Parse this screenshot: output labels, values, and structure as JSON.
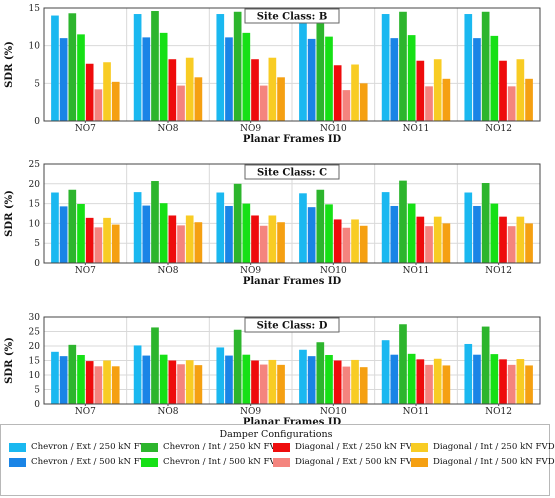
{
  "chart_data": [
    {
      "type": "bar",
      "annotation": "Site Class: B",
      "ylabel": "SDR (%)",
      "xlabel": "Planar Frames ID",
      "ylim": [
        0,
        15
      ],
      "yticks": [
        0,
        5,
        10,
        15
      ],
      "categories": [
        "NO7",
        "NO8",
        "NO9",
        "NO10",
        "NO11",
        "NO12"
      ],
      "series": [
        {
          "name": "Chevron / Ext / 250 kN FVD",
          "values": [
            14.0,
            14.2,
            14.2,
            14.0,
            14.2,
            14.2
          ]
        },
        {
          "name": "Chevron / Ext / 500 kN FVD",
          "values": [
            11.0,
            11.1,
            11.1,
            10.9,
            11.0,
            11.0
          ]
        },
        {
          "name": "Chevron / Int / 250 kN FVD",
          "values": [
            14.3,
            14.6,
            14.5,
            14.3,
            14.5,
            14.5
          ]
        },
        {
          "name": "Chevron / Int / 500 kN FVD",
          "values": [
            11.5,
            11.7,
            11.7,
            11.2,
            11.4,
            11.3
          ]
        },
        {
          "name": "Diagonal / Ext / 250 kN FVD",
          "values": [
            7.6,
            8.2,
            8.2,
            7.4,
            8.0,
            8.0
          ]
        },
        {
          "name": "Diagonal / Ext / 500 kN FVD",
          "values": [
            4.2,
            4.7,
            4.7,
            4.1,
            4.6,
            4.6
          ]
        },
        {
          "name": "Diagonal / Int / 250 kN FVD",
          "values": [
            7.8,
            8.4,
            8.4,
            7.5,
            8.2,
            8.2
          ]
        },
        {
          "name": "Diagonal / Int / 500 kN FVD",
          "values": [
            5.2,
            5.8,
            5.8,
            5.0,
            5.6,
            5.6
          ]
        }
      ]
    },
    {
      "type": "bar",
      "annotation": "Site Class: C",
      "ylabel": "SDR (%)",
      "xlabel": "Planar Frames ID",
      "ylim": [
        0,
        25
      ],
      "yticks": [
        0,
        5,
        10,
        15,
        20,
        25
      ],
      "categories": [
        "NO7",
        "NO8",
        "NO9",
        "NO10",
        "NO11",
        "NO12"
      ],
      "series": [
        {
          "name": "Chevron / Ext / 250 kN FVD",
          "values": [
            17.8,
            17.9,
            17.8,
            17.6,
            17.9,
            17.8
          ]
        },
        {
          "name": "Chevron / Ext / 500 kN FVD",
          "values": [
            14.3,
            14.5,
            14.4,
            14.1,
            14.4,
            14.4
          ]
        },
        {
          "name": "Chevron / Int / 250 kN FVD",
          "values": [
            18.5,
            20.7,
            20.0,
            18.5,
            20.8,
            20.2
          ]
        },
        {
          "name": "Chevron / Int / 500 kN FVD",
          "values": [
            14.9,
            15.1,
            15.0,
            14.8,
            15.0,
            15.0
          ]
        },
        {
          "name": "Diagonal / Ext / 250 kN FVD",
          "values": [
            11.4,
            12.0,
            12.0,
            11.0,
            11.7,
            11.7
          ]
        },
        {
          "name": "Diagonal / Ext / 500 kN FVD",
          "values": [
            9.0,
            9.5,
            9.4,
            8.9,
            9.3,
            9.3
          ]
        },
        {
          "name": "Diagonal / Int / 250 kN FVD",
          "values": [
            11.4,
            12.0,
            12.0,
            11.0,
            11.7,
            11.7
          ]
        },
        {
          "name": "Diagonal / Int / 500 kN FVD",
          "values": [
            9.7,
            10.3,
            10.3,
            9.4,
            10.0,
            10.0
          ]
        }
      ]
    },
    {
      "type": "bar",
      "annotation": "Site Class: D",
      "ylabel": "SDR (%)",
      "xlabel": "Planar Frames ID",
      "ylim": [
        0,
        30
      ],
      "yticks": [
        0,
        5,
        10,
        15,
        20,
        25,
        30
      ],
      "categories": [
        "NO7",
        "NO8",
        "NO9",
        "NO10",
        "NO11",
        "NO12"
      ],
      "series": [
        {
          "name": "Chevron / Ext / 250 kN FVD",
          "values": [
            18.0,
            20.2,
            19.5,
            18.7,
            22.0,
            20.7
          ]
        },
        {
          "name": "Chevron / Ext / 500 kN FVD",
          "values": [
            16.5,
            16.7,
            16.7,
            16.5,
            17.0,
            17.0
          ]
        },
        {
          "name": "Chevron / Int / 250 kN FVD",
          "values": [
            20.4,
            26.4,
            25.6,
            21.3,
            27.5,
            26.7
          ]
        },
        {
          "name": "Chevron / Int / 500 kN FVD",
          "values": [
            16.9,
            17.0,
            17.0,
            16.9,
            17.3,
            17.2
          ]
        },
        {
          "name": "Diagonal / Ext / 250 kN FVD",
          "values": [
            14.8,
            15.0,
            15.0,
            15.0,
            15.4,
            15.4
          ]
        },
        {
          "name": "Diagonal / Ext / 500 kN FVD",
          "values": [
            13.0,
            13.7,
            13.6,
            12.9,
            13.5,
            13.5
          ]
        },
        {
          "name": "Diagonal / Int / 250 kN FVD",
          "values": [
            15.0,
            15.1,
            15.2,
            15.2,
            15.6,
            15.5
          ]
        },
        {
          "name": "Diagonal / Int / 500 kN FVD",
          "values": [
            13.0,
            13.4,
            13.5,
            12.7,
            13.3,
            13.3
          ]
        }
      ]
    }
  ],
  "legend": {
    "title": "Damper Configurations",
    "items": [
      {
        "label": "Chevron / Ext / 250 kN FVD",
        "color": "#1ab8f0"
      },
      {
        "label": "Chevron / Ext / 500 kN FVD",
        "color": "#1a84e6"
      },
      {
        "label": "Chevron / Int / 250 kN FVD",
        "color": "#2db52d"
      },
      {
        "label": "Chevron / Int / 500 kN FVD",
        "color": "#16e016"
      },
      {
        "label": "Diagonal / Ext / 250 kN FVD",
        "color": "#ee0c0c"
      },
      {
        "label": "Diagonal / Ext / 500 kN FVD",
        "color": "#f4847e"
      },
      {
        "label": "Diagonal / Int / 250 kN FVD",
        "color": "#f8cc24"
      },
      {
        "label": "Diagonal / Int / 500 kN FVD",
        "color": "#f5a012"
      }
    ]
  }
}
